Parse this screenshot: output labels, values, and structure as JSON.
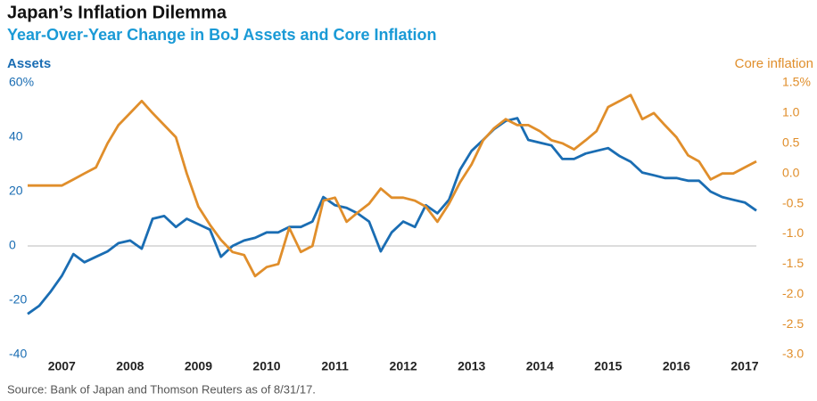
{
  "chart_data": {
    "type": "line",
    "title": "Japan’s Inflation Dilemma",
    "subtitle": "Year-Over-Year Change in BoJ Assets and Core Inflation",
    "y_label": "Assets",
    "y2_label": "Core inflation",
    "source": "Source: Bank of Japan and Thomson Reuters as of 8/31/17.",
    "x": [
      2007,
      2007.17,
      2007.33,
      2007.5,
      2007.67,
      2007.83,
      2008,
      2008.17,
      2008.33,
      2008.5,
      2008.67,
      2008.83,
      2009,
      2009.17,
      2009.33,
      2009.5,
      2009.67,
      2009.83,
      2010,
      2010.17,
      2010.33,
      2010.5,
      2010.67,
      2010.83,
      2011,
      2011.17,
      2011.33,
      2011.5,
      2011.67,
      2011.83,
      2012,
      2012.17,
      2012.33,
      2012.5,
      2012.67,
      2012.83,
      2013,
      2013.17,
      2013.33,
      2013.5,
      2013.67,
      2013.83,
      2014,
      2014.17,
      2014.33,
      2014.5,
      2014.67,
      2014.83,
      2015,
      2015.17,
      2015.33,
      2015.5,
      2015.67,
      2015.83,
      2016,
      2016.17,
      2016.33,
      2016.5,
      2016.67,
      2016.83,
      2017,
      2017.17,
      2017.33,
      2017.5,
      2017.67
    ],
    "xlim": [
      2007,
      2017.67
    ],
    "xticks": [
      {
        "value": 2007.5,
        "label": "2007"
      },
      {
        "value": 2008.5,
        "label": "2008"
      },
      {
        "value": 2009.5,
        "label": "2009"
      },
      {
        "value": 2010.5,
        "label": "2010"
      },
      {
        "value": 2011.5,
        "label": "2011"
      },
      {
        "value": 2012.5,
        "label": "2012"
      },
      {
        "value": 2013.5,
        "label": "2013"
      },
      {
        "value": 2014.5,
        "label": "2014"
      },
      {
        "value": 2015.5,
        "label": "2015"
      },
      {
        "value": 2016.5,
        "label": "2016"
      },
      {
        "value": 2017.5,
        "label": "2017"
      }
    ],
    "ylim": [
      -40,
      60
    ],
    "yticks": [
      {
        "value": 60,
        "label": "60%"
      },
      40,
      20,
      0,
      -20,
      -40
    ],
    "y2lim": [
      -3.0,
      1.5
    ],
    "y2ticks": [
      {
        "value": 1.5,
        "label": "1.5%"
      },
      {
        "value": 1.0,
        "label": "1.0"
      },
      0.5,
      {
        "value": 0,
        "label": "0.0"
      },
      -0.5,
      {
        "value": -1.0,
        "label": "-1.0"
      },
      -1.5,
      {
        "value": -2.0,
        "label": "-2.0"
      },
      -2.5,
      {
        "value": -3.0,
        "label": "-3.0"
      }
    ],
    "series": [
      {
        "name": "Assets",
        "color": "#1a6db3",
        "axis": "y",
        "values": [
          -25,
          -22,
          -17,
          -11,
          -3,
          -6,
          -4,
          -2,
          1,
          2,
          -1,
          10,
          11,
          7,
          10,
          8,
          6,
          -4,
          0,
          2,
          3,
          5,
          5,
          7,
          7,
          9,
          18,
          15,
          14,
          12,
          9,
          -2,
          5,
          9,
          7,
          15,
          12,
          17,
          28,
          35,
          39,
          43,
          46,
          47,
          39,
          38,
          37,
          32,
          32,
          34,
          35,
          36,
          33,
          31,
          27,
          26,
          25,
          25,
          24,
          24,
          20,
          18,
          17,
          16,
          13
        ]
      },
      {
        "name": "Core inflation",
        "color": "#e08e2b",
        "axis": "y2",
        "values": [
          -0.2,
          -0.2,
          -0.2,
          -0.2,
          -0.1,
          0.0,
          0.1,
          0.5,
          0.8,
          1.0,
          1.2,
          1.0,
          0.8,
          0.6,
          0.0,
          -0.55,
          -0.85,
          -1.1,
          -1.3,
          -1.35,
          -1.7,
          -1.55,
          -1.5,
          -0.9,
          -1.3,
          -1.2,
          -0.45,
          -0.4,
          -0.8,
          -0.65,
          -0.5,
          -0.25,
          -0.4,
          -0.4,
          -0.45,
          -0.55,
          -0.8,
          -0.5,
          -0.15,
          0.15,
          0.55,
          0.75,
          0.9,
          0.8,
          0.8,
          0.7,
          0.55,
          0.5,
          0.4,
          0.55,
          0.7,
          1.1,
          1.2,
          1.3,
          0.9,
          1.0,
          0.8,
          0.6,
          0.3,
          0.2,
          -0.1,
          0.0,
          0.0,
          0.1,
          0.2
        ]
      }
    ]
  }
}
